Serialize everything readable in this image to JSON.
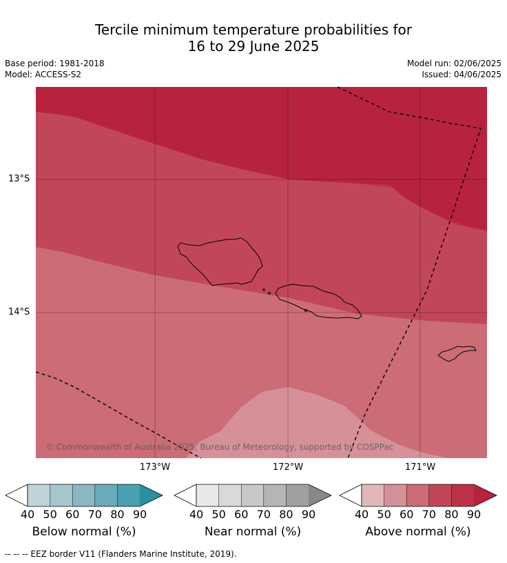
{
  "title_line1": "Tercile minimum temperature probabilities for",
  "title_line2": "16 to 29 June 2025",
  "base_period": "Base period: 1981-2018",
  "model": "Model: ACCESS-S2",
  "model_run": "Model run: 02/06/2025",
  "issued": "Issued: 04/06/2025",
  "lat_labels": [
    "13°S",
    "14°S"
  ],
  "lon_labels": [
    "173°W",
    "172°W",
    "171°W"
  ],
  "copyright": "© Commonwealth of Australia 2025, Bureau of Meteorology, supported by COSPPac",
  "colors": {
    "above_90": "#b7233f",
    "above_80": "#bb3249",
    "above_70": "#c2465a",
    "above_60": "#cc6c77",
    "above_50": "#d69198",
    "above_40": "#e1b7bb"
  },
  "colorbars": [
    {
      "title": "Below normal (%)",
      "ticks": [
        "40",
        "50",
        "60",
        "70",
        "80",
        "90"
      ],
      "colors": [
        "#bfd3d9",
        "#a5c6cc",
        "#89b7c3",
        "#6aabba",
        "#48a0b0",
        "#2b8fa3"
      ]
    },
    {
      "title": "Near normal (%)",
      "ticks": [
        "40",
        "50",
        "60",
        "70",
        "80",
        "90"
      ],
      "colors": [
        "#e8e8e8",
        "#d9d9d9",
        "#c8c8c8",
        "#b5b5b5",
        "#a0a0a0",
        "#888888"
      ]
    },
    {
      "title": "Above normal (%)",
      "ticks": [
        "40",
        "50",
        "60",
        "70",
        "80",
        "90"
      ],
      "colors": [
        "#e1b7bb",
        "#d69198",
        "#cc6c77",
        "#c2465a",
        "#bb3249",
        "#b7233f"
      ]
    }
  ],
  "footnote": "--  --  -- EEZ border V11 (Flanders Marine Institute, 2019)."
}
